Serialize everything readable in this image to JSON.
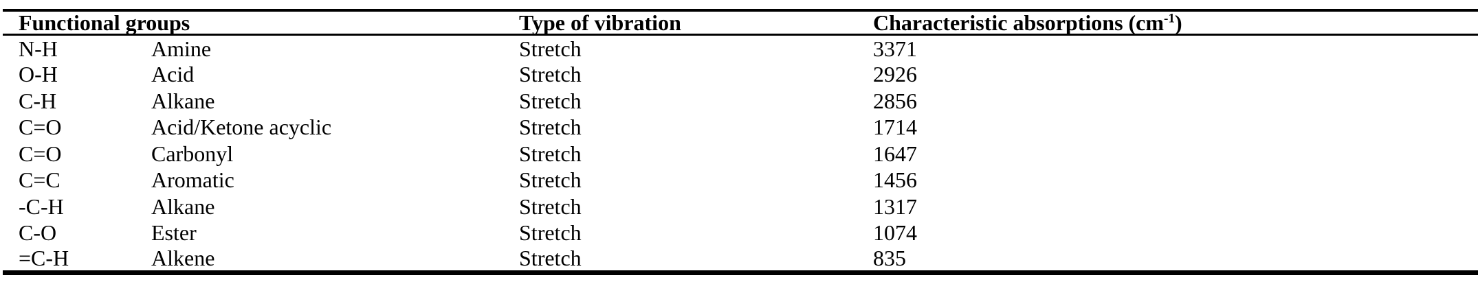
{
  "colors": {
    "background": "#ffffff",
    "text": "#000000",
    "rule": "#000000"
  },
  "table": {
    "headers": {
      "functional_groups": "Functional groups",
      "type_of_vibration": "Type of vibration",
      "absorption_prefix": "Characteristic absorptions (cm",
      "absorption_sup": "-1",
      "absorption_suffix": ")"
    },
    "rows": [
      {
        "bond": "N-H",
        "group": "Amine",
        "vibration": "Stretch",
        "absorption": "3371"
      },
      {
        "bond": "O-H",
        "group": "Acid",
        "vibration": "Stretch",
        "absorption": "2926"
      },
      {
        "bond": "C-H",
        "group": "Alkane",
        "vibration": "Stretch",
        "absorption": "2856"
      },
      {
        "bond": "C=O",
        "group": "Acid/Ketone acyclic",
        "vibration": "Stretch",
        "absorption": "1714"
      },
      {
        "bond": "C=O",
        "group": "Carbonyl",
        "vibration": "Stretch",
        "absorption": "1647"
      },
      {
        "bond": "C=C",
        "group": "Aromatic",
        "vibration": "Stretch",
        "absorption": "1456"
      },
      {
        "bond": "-C-H",
        "group": "Alkane",
        "vibration": "Stretch",
        "absorption": "1317"
      },
      {
        "bond": "C-O",
        "group": "Ester",
        "vibration": "Stretch",
        "absorption": "1074"
      },
      {
        "bond": "=C-H",
        "group": "Alkene",
        "vibration": "Stretch",
        "absorption": "835"
      }
    ]
  }
}
